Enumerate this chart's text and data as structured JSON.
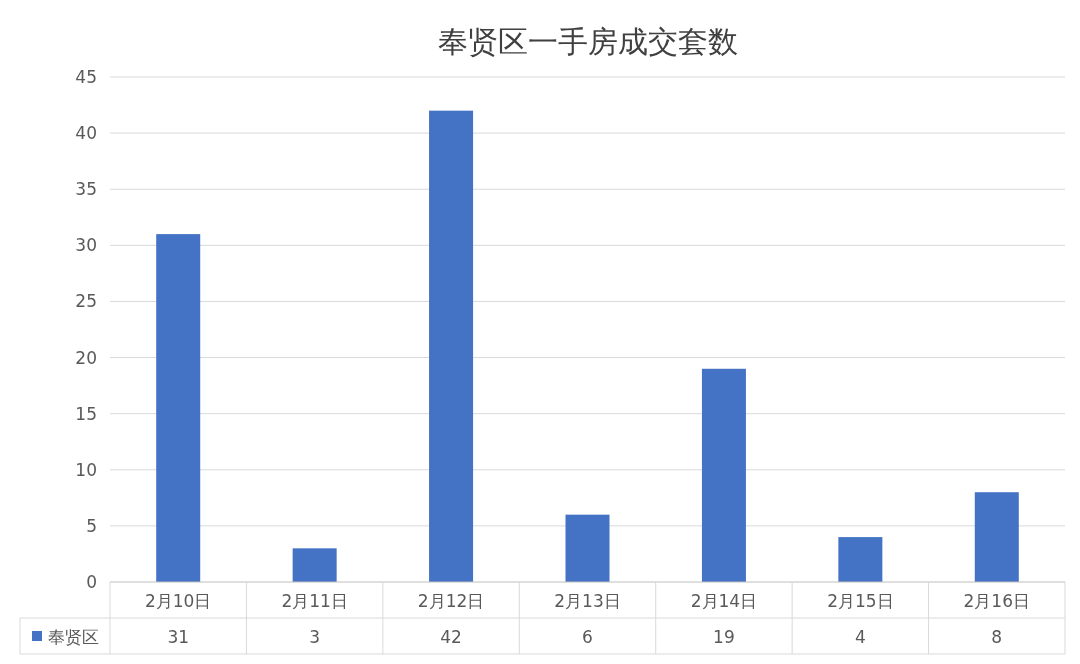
{
  "chart_data": {
    "type": "bar",
    "title": "奉贤区一手房成交套数",
    "categories": [
      "2月10日",
      "2月11日",
      "2月12日",
      "2月13日",
      "2月14日",
      "2月15日",
      "2月16日"
    ],
    "series": [
      {
        "name": "奉贤区",
        "color": "#4472c4",
        "values": [
          31,
          3,
          42,
          6,
          19,
          4,
          8
        ]
      }
    ],
    "ylim": [
      0,
      45
    ],
    "yticks": [
      0,
      5,
      10,
      15,
      20,
      25,
      30,
      35,
      40,
      45
    ],
    "grid": "y",
    "legend": "bottom",
    "data_labels": true
  }
}
